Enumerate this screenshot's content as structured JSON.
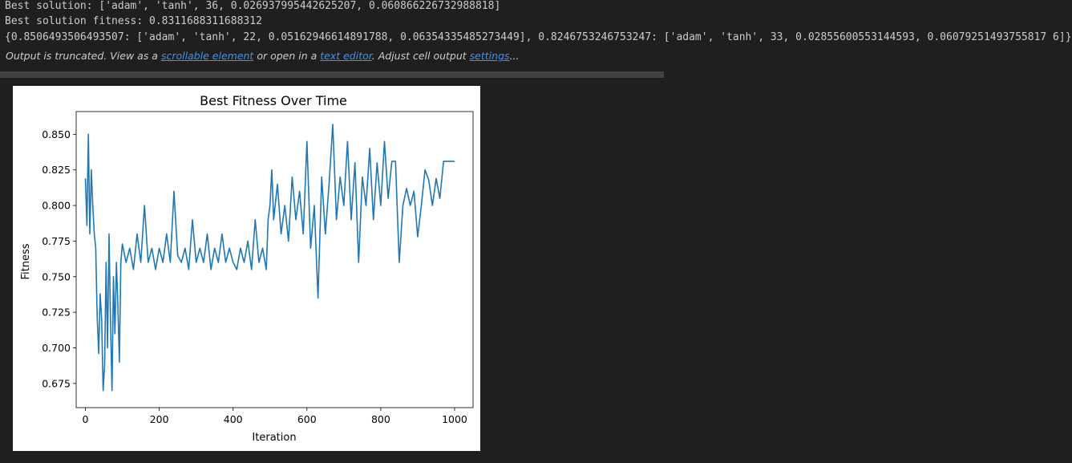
{
  "output": {
    "lines": [
      "Best solution: ['adam', 'tanh', 36, 0.026937995442625207, 0.060866226732988818]",
      "Best solution fitness: 0.8311688311688312",
      "{0.8506493506493507: ['adam', 'tanh', 22, 0.05162946614891788, 0.06354335485273449], 0.8246753246753247: ['adam', 'tanh', 33, 0.02855600553144593, 0.06079251493755817 6]}"
    ],
    "truncated": {
      "text1": "Output is truncated. View as a ",
      "link1": "scrollable element",
      "text2": " or open in a ",
      "link2": "text editor",
      "text3": ". Adjust cell output ",
      "link3": "settings",
      "text4": "..."
    }
  },
  "chart_data": {
    "type": "line",
    "title": "Best Fitness Over Time",
    "xlabel": "Iteration",
    "ylabel": "Fitness",
    "xlim": [
      -25,
      1050
    ],
    "ylim": [
      0.658,
      0.866
    ],
    "xticks": [
      0,
      200,
      400,
      600,
      800,
      1000
    ],
    "xtick_labels": [
      "0",
      "200",
      "400",
      "600",
      "800",
      "1000"
    ],
    "yticks": [
      0.675,
      0.7,
      0.725,
      0.75,
      0.775,
      0.8,
      0.825,
      0.85
    ],
    "ytick_labels": [
      "0.675",
      "0.700",
      "0.725",
      "0.750",
      "0.775",
      "0.800",
      "0.825",
      "0.850"
    ],
    "grid": false,
    "color": "#1f77b4",
    "series": [
      {
        "x": [
          0,
          4,
          8,
          12,
          16,
          20,
          24,
          28,
          32,
          36,
          40,
          44,
          48,
          52,
          56,
          60,
          64,
          68,
          72,
          76,
          80,
          84,
          88,
          92,
          96,
          100,
          110,
          120,
          130,
          140,
          150,
          160,
          170,
          180,
          190,
          200,
          210,
          220,
          230,
          240,
          250,
          260,
          270,
          280,
          290,
          300,
          310,
          320,
          330,
          340,
          350,
          360,
          370,
          380,
          390,
          400,
          410,
          420,
          430,
          440,
          450,
          460,
          470,
          480,
          490,
          495,
          500,
          505,
          510,
          520,
          530,
          540,
          550,
          560,
          570,
          580,
          590,
          600,
          610,
          620,
          630,
          640,
          650,
          660,
          670,
          680,
          690,
          700,
          710,
          720,
          730,
          740,
          750,
          760,
          770,
          780,
          790,
          800,
          810,
          820,
          830,
          840,
          850,
          860,
          870,
          880,
          890,
          900,
          910,
          920,
          930,
          940,
          950,
          960,
          970,
          980,
          990,
          1000
        ],
        "y": [
          0.819,
          0.786,
          0.85,
          0.78,
          0.825,
          0.8,
          0.78,
          0.77,
          0.722,
          0.696,
          0.738,
          0.72,
          0.67,
          0.688,
          0.76,
          0.7,
          0.78,
          0.72,
          0.67,
          0.75,
          0.71,
          0.76,
          0.73,
          0.69,
          0.76,
          0.773,
          0.76,
          0.77,
          0.755,
          0.78,
          0.76,
          0.8,
          0.76,
          0.77,
          0.755,
          0.77,
          0.76,
          0.78,
          0.76,
          0.81,
          0.765,
          0.76,
          0.77,
          0.755,
          0.79,
          0.76,
          0.77,
          0.76,
          0.78,
          0.755,
          0.77,
          0.76,
          0.78,
          0.76,
          0.77,
          0.76,
          0.755,
          0.77,
          0.76,
          0.775,
          0.755,
          0.79,
          0.76,
          0.77,
          0.755,
          0.79,
          0.8,
          0.825,
          0.79,
          0.815,
          0.78,
          0.8,
          0.775,
          0.82,
          0.79,
          0.81,
          0.78,
          0.845,
          0.77,
          0.8,
          0.735,
          0.82,
          0.78,
          0.815,
          0.857,
          0.79,
          0.82,
          0.8,
          0.845,
          0.79,
          0.83,
          0.76,
          0.82,
          0.8,
          0.84,
          0.79,
          0.83,
          0.8,
          0.845,
          0.805,
          0.831,
          0.831,
          0.76,
          0.8,
          0.812,
          0.8,
          0.81,
          0.778,
          0.8,
          0.825,
          0.818,
          0.8,
          0.819,
          0.805,
          0.831,
          0.831,
          0.831,
          0.831
        ]
      }
    ]
  }
}
